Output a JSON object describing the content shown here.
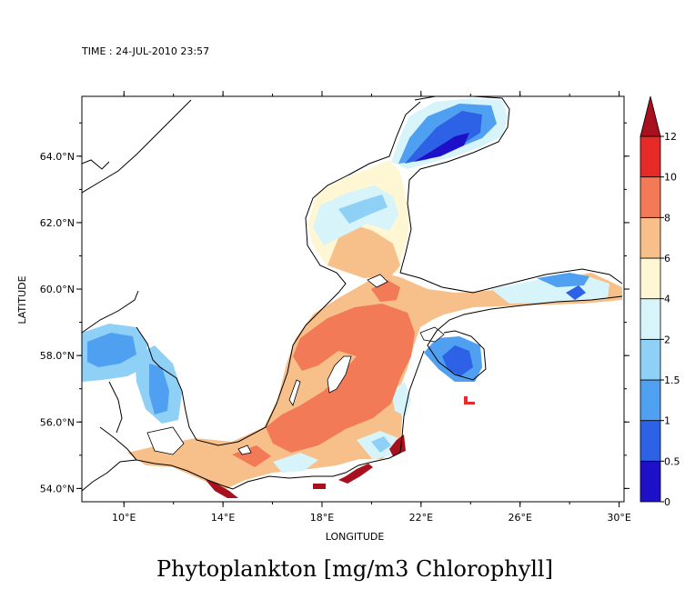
{
  "header": {
    "time_label": "TIME : 24-JUL-2010 23:57"
  },
  "axes": {
    "x_label": "LONGITUDE",
    "y_label": "LATITUDE",
    "x_ticks": [
      "10°E",
      "14°E",
      "18°E",
      "22°E",
      "26°E",
      "30°E"
    ],
    "y_ticks": [
      "54.0°N",
      "56.0°N",
      "58.0°N",
      "60.0°N",
      "62.0°N",
      "64.0°N"
    ],
    "lon_range": [
      8.3,
      30.2
    ],
    "lat_range": [
      53.6,
      65.8
    ]
  },
  "title": "Phytoplankton [mg/m3 Chlorophyll]",
  "colorbar": {
    "levels": [
      {
        "label": "0",
        "color": "#1e10c8"
      },
      {
        "label": "0.5",
        "color": "#2d62e6"
      },
      {
        "label": "1",
        "color": "#4fa0f0"
      },
      {
        "label": "1.5",
        "color": "#8fd0f6"
      },
      {
        "label": "2",
        "color": "#d6f4fa"
      },
      {
        "label": "4",
        "color": "#fff6d4"
      },
      {
        "label": "6",
        "color": "#f7c08a"
      },
      {
        "label": "8",
        "color": "#f27a56"
      },
      {
        "label": "10",
        "color": "#e62a28"
      },
      {
        "label": "12",
        "color": "#a8101e"
      }
    ]
  }
}
